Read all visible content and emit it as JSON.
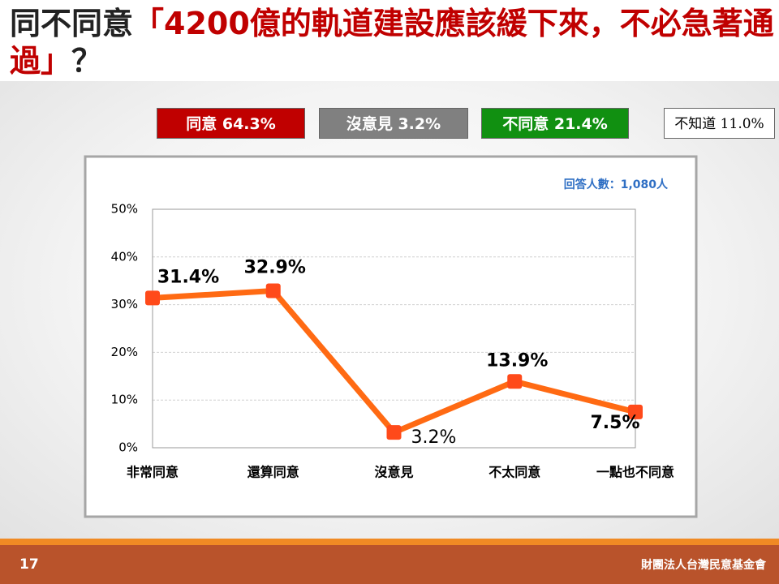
{
  "slide": {
    "title_parts": [
      "同不同意",
      "「4200億的軌道建設應該緩下來，不必急著通過」",
      "？"
    ],
    "summary": [
      "同意 64.3%",
      "沒意見 3.2%",
      "不同意 21.4%",
      "不知道 11.0%"
    ],
    "page_number": "17",
    "organization": "財團法人台灣民意基金會"
  },
  "chart_data": {
    "type": "line",
    "note": "回答人數：1,080人",
    "categories": [
      "非常同意",
      "還算同意",
      "沒意見",
      "不太同意",
      "一點也不同意"
    ],
    "values": [
      31.4,
      32.9,
      3.2,
      13.9,
      7.5
    ],
    "value_labels": [
      "31.4%",
      "32.9%",
      "3.2%",
      "13.9%",
      "7.5%"
    ],
    "color": "#ff6a13",
    "ylim": [
      0,
      50
    ],
    "yticks": [
      {
        "value": 0,
        "label": "0%"
      },
      {
        "value": 10,
        "label": "10%"
      },
      {
        "value": 20,
        "label": "20%"
      },
      {
        "value": 30,
        "label": "30%"
      },
      {
        "value": 40,
        "label": "40%"
      },
      {
        "value": 50,
        "label": "50%"
      }
    ],
    "grid": true
  }
}
